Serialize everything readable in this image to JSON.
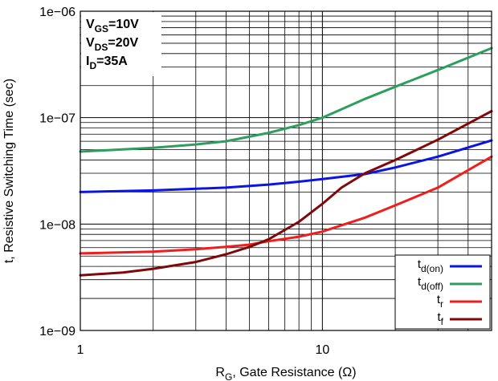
{
  "chart_data": {
    "type": "line",
    "x_scale": "log",
    "y_scale": "log",
    "xlim": [
      1,
      50
    ],
    "ylim": [
      1e-09,
      1e-06
    ],
    "grid": true,
    "legend_position": "bottom-right",
    "xlabel": {
      "main": "R",
      "sub": "G",
      "rest": ", Gate Resistance (Ω)"
    },
    "ylabel": "t, Resistive Switching Time (sec)",
    "x_tick_labels": [
      {
        "value": 1,
        "label": "1"
      },
      {
        "value": 10,
        "label": "10"
      }
    ],
    "y_tick_labels": [
      {
        "value": 1e-09,
        "label": "1e−09"
      },
      {
        "value": 1e-08,
        "label": "1e−08"
      },
      {
        "value": 1e-07,
        "label": "1e−07"
      },
      {
        "value": 1e-06,
        "label": "1e−06"
      }
    ],
    "conditions": [
      {
        "main": "V",
        "sub": "GS",
        "rest": "=10V"
      },
      {
        "main": "V",
        "sub": "DS",
        "rest": "=20V"
      },
      {
        "main": "I",
        "sub": "D",
        "rest": "=35A"
      }
    ],
    "series": [
      {
        "name": "t",
        "name_sub": "d(on)",
        "color": "#0a14e6",
        "x": [
          1,
          2,
          4,
          6,
          8,
          10,
          15,
          20,
          30,
          50
        ],
        "y": [
          2e-08,
          2.07e-08,
          2.2e-08,
          2.35e-08,
          2.5e-08,
          2.65e-08,
          2.95e-08,
          3.4e-08,
          4.3e-08,
          6.1e-08
        ]
      },
      {
        "name": "t",
        "name_sub": "d(off)",
        "color": "#2e9e5f",
        "x": [
          1,
          2,
          3,
          4,
          6,
          8,
          10,
          15,
          20,
          30,
          50
        ],
        "y": [
          4.8e-08,
          5.2e-08,
          5.6e-08,
          6e-08,
          7.2e-08,
          8.5e-08,
          1e-07,
          1.5e-07,
          1.95e-07,
          2.8e-07,
          4.5e-07
        ]
      },
      {
        "name": "t",
        "name_sub": "r",
        "color": "#f01e1e",
        "x": [
          1,
          2,
          3,
          4,
          5,
          6,
          8,
          10,
          15,
          20,
          30,
          50
        ],
        "y": [
          5.3e-09,
          5.5e-09,
          5.8e-09,
          6.1e-09,
          6.4e-09,
          6.9e-09,
          7.6e-09,
          8.5e-09,
          1.15e-08,
          1.5e-08,
          2.2e-08,
          4.3e-08
        ]
      },
      {
        "name": "t",
        "name_sub": "f",
        "color": "#800808",
        "x": [
          1,
          1.5,
          2,
          3,
          4,
          5,
          6,
          8,
          10,
          12,
          15,
          20,
          30,
          50
        ],
        "y": [
          3.3e-09,
          3.5e-09,
          3.8e-09,
          4.4e-09,
          5.2e-09,
          6.1e-09,
          7.2e-09,
          1.05e-08,
          1.55e-08,
          2.2e-08,
          3e-08,
          4e-08,
          6.2e-08,
          1.15e-07
        ]
      }
    ]
  }
}
